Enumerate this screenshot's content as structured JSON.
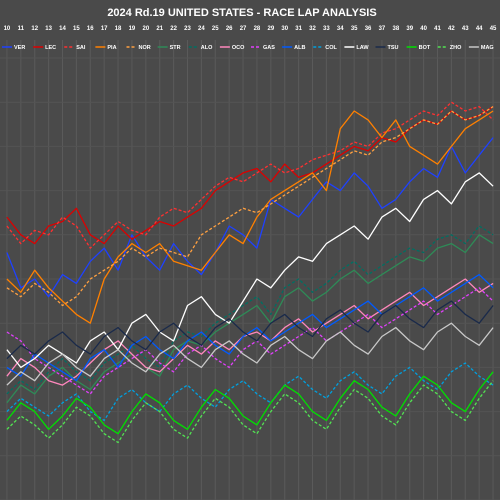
{
  "chart_data": {
    "type": "line",
    "title": "2024 Rd.19 UNITED STATES - RACE LAP ANALYSIS",
    "xlabel": "",
    "ylabel": "",
    "x_ticks": [
      "10",
      "11",
      "12",
      "13",
      "14",
      "15",
      "16",
      "17",
      "18",
      "19",
      "20",
      "21",
      "22",
      "23",
      "24",
      "25",
      "26",
      "27",
      "28",
      "29",
      "30",
      "31",
      "32",
      "33",
      "34",
      "35",
      "36",
      "37",
      "38",
      "39",
      "40",
      "41",
      "42",
      "43",
      "44",
      "45"
    ],
    "x_range": [
      9.5,
      45.5
    ],
    "y_range": [
      0,
      100
    ],
    "grid": true,
    "legend_placement": "top",
    "series": [
      {
        "name": "VER",
        "color": "#1e41ff",
        "dash": "solid",
        "x": [
          10,
          11,
          12,
          13,
          14,
          15,
          16,
          17,
          18,
          19,
          20,
          21,
          22,
          23,
          24,
          25,
          26,
          27,
          28,
          29,
          30,
          31,
          32,
          33,
          34,
          35,
          36,
          37,
          38,
          39,
          40,
          41,
          42,
          43,
          44,
          45
        ],
        "y": [
          56,
          48,
          50,
          46,
          51,
          49,
          54,
          57,
          52,
          60,
          55,
          52,
          58,
          54,
          51,
          56,
          62,
          60,
          57,
          68,
          66,
          64,
          68,
          72,
          70,
          74,
          71,
          66,
          68,
          72,
          75,
          73,
          80,
          74,
          78,
          82
        ]
      },
      {
        "name": "LEC",
        "color": "#dc0000",
        "dash": "solid",
        "x": [
          10,
          11,
          12,
          13,
          14,
          15,
          16,
          17,
          18,
          19,
          20,
          21,
          22,
          23,
          24,
          25,
          26,
          27,
          28,
          29,
          30,
          31,
          32,
          33,
          34,
          35,
          36,
          37,
          38,
          39,
          40,
          41,
          42,
          43,
          44,
          45
        ],
        "y": [
          64,
          60,
          58,
          62,
          63,
          66,
          60,
          58,
          62,
          59,
          61,
          63,
          62,
          64,
          66,
          70,
          72,
          74,
          75,
          72,
          76,
          73,
          74,
          76,
          78,
          80,
          79,
          82,
          81,
          84,
          86,
          85,
          88,
          86,
          87,
          89
        ]
      },
      {
        "name": "SAI",
        "color": "#ff3030",
        "dash": "dashed",
        "x": [
          10,
          11,
          12,
          13,
          14,
          15,
          16,
          17,
          18,
          19,
          20,
          21,
          22,
          23,
          24,
          25,
          26,
          27,
          28,
          29,
          30,
          31,
          32,
          33,
          34,
          35,
          36,
          37,
          38,
          39,
          40,
          41,
          42,
          43,
          44,
          45
        ],
        "y": [
          62,
          58,
          61,
          60,
          64,
          62,
          57,
          60,
          63,
          61,
          60,
          64,
          66,
          65,
          68,
          71,
          73,
          72,
          74,
          76,
          74,
          75,
          77,
          78,
          79,
          81,
          80,
          83,
          84,
          86,
          88,
          87,
          90,
          88,
          89,
          86
        ]
      },
      {
        "name": "PIA",
        "color": "#ff8000",
        "dash": "solid",
        "x": [
          10,
          11,
          12,
          13,
          14,
          15,
          16,
          17,
          18,
          19,
          20,
          21,
          22,
          23,
          24,
          25,
          26,
          27,
          28,
          29,
          30,
          31,
          32,
          33,
          34,
          35,
          36,
          37,
          38,
          39,
          40,
          41,
          42,
          43,
          44,
          45
        ],
        "y": [
          50,
          47,
          52,
          48,
          45,
          42,
          40,
          50,
          55,
          58,
          56,
          58,
          54,
          53,
          52,
          56,
          60,
          58,
          64,
          68,
          70,
          72,
          74,
          70,
          84,
          88,
          86,
          82,
          86,
          80,
          78,
          76,
          80,
          84,
          86,
          88
        ]
      },
      {
        "name": "NOR",
        "color": "#ffa040",
        "dash": "dashed",
        "x": [
          10,
          11,
          12,
          13,
          14,
          15,
          16,
          17,
          18,
          19,
          20,
          21,
          22,
          23,
          24,
          25,
          26,
          27,
          28,
          29,
          30,
          31,
          32,
          33,
          34,
          35,
          36,
          37,
          38,
          39,
          40,
          41,
          42,
          43,
          44,
          45
        ],
        "y": [
          48,
          46,
          49,
          47,
          44,
          46,
          50,
          52,
          54,
          57,
          55,
          57,
          56,
          55,
          60,
          62,
          64,
          66,
          65,
          67,
          69,
          71,
          73,
          75,
          77,
          79,
          78,
          81,
          82,
          84,
          86,
          85,
          88,
          86,
          87,
          89
        ]
      },
      {
        "name": "STR",
        "color": "#2e8b57",
        "dash": "solid",
        "x": [
          10,
          11,
          12,
          13,
          14,
          15,
          16,
          17,
          18,
          19,
          20,
          21,
          22,
          23,
          24,
          25,
          26,
          27,
          28,
          29,
          30,
          31,
          32,
          33,
          34,
          35,
          36,
          37,
          38,
          39,
          40,
          41,
          42,
          43,
          44,
          45
        ],
        "y": [
          22,
          26,
          24,
          28,
          30,
          27,
          25,
          29,
          31,
          33,
          30,
          28,
          34,
          36,
          35,
          38,
          40,
          42,
          44,
          40,
          46,
          48,
          45,
          47,
          50,
          52,
          49,
          51,
          53,
          55,
          54,
          57,
          58,
          56,
          60,
          58
        ]
      },
      {
        "name": "ALO",
        "color": "#006f62",
        "dash": "dashed",
        "x": [
          10,
          11,
          12,
          13,
          14,
          15,
          16,
          17,
          18,
          19,
          20,
          21,
          22,
          23,
          24,
          25,
          26,
          27,
          28,
          29,
          30,
          31,
          32,
          33,
          34,
          35,
          36,
          37,
          38,
          39,
          40,
          41,
          42,
          43,
          44,
          45
        ],
        "y": [
          24,
          27,
          25,
          29,
          32,
          29,
          27,
          31,
          33,
          35,
          32,
          30,
          36,
          38,
          37,
          40,
          42,
          44,
          46,
          42,
          48,
          50,
          47,
          49,
          52,
          54,
          51,
          53,
          55,
          57,
          56,
          59,
          60,
          58,
          62,
          60
        ]
      },
      {
        "name": "OCO",
        "color": "#ff87bc",
        "dash": "solid",
        "x": [
          10,
          11,
          12,
          13,
          14,
          15,
          16,
          17,
          18,
          19,
          20,
          21,
          22,
          23,
          24,
          25,
          26,
          27,
          28,
          29,
          30,
          31,
          32,
          33,
          34,
          35,
          36,
          37,
          38,
          39,
          40,
          41,
          42,
          43,
          44,
          45
        ],
        "y": [
          28,
          32,
          30,
          27,
          26,
          28,
          31,
          34,
          36,
          33,
          30,
          29,
          32,
          35,
          33,
          36,
          34,
          37,
          38,
          36,
          39,
          41,
          38,
          40,
          42,
          44,
          41,
          43,
          45,
          47,
          44,
          46,
          48,
          50,
          47,
          49
        ]
      },
      {
        "name": "GAS",
        "color": "#e040fb",
        "dash": "dashed",
        "x": [
          10,
          11,
          12,
          13,
          14,
          15,
          16,
          17,
          18,
          19,
          20,
          21,
          22,
          23,
          24,
          25,
          26,
          27,
          28,
          29,
          30,
          31,
          32,
          33,
          34,
          35,
          36,
          37,
          38,
          39,
          40,
          41,
          42,
          43,
          44,
          45
        ],
        "y": [
          38,
          36,
          32,
          30,
          28,
          26,
          24,
          28,
          30,
          32,
          34,
          31,
          29,
          33,
          35,
          32,
          30,
          34,
          36,
          33,
          35,
          37,
          39,
          36,
          38,
          40,
          42,
          39,
          41,
          43,
          45,
          42,
          44,
          46,
          48,
          45
        ]
      },
      {
        "name": "ALB",
        "color": "#005aff",
        "dash": "solid",
        "x": [
          10,
          11,
          12,
          13,
          14,
          15,
          16,
          17,
          18,
          19,
          20,
          21,
          22,
          23,
          24,
          25,
          26,
          27,
          28,
          29,
          30,
          31,
          32,
          33,
          34,
          35,
          36,
          37,
          38,
          39,
          40,
          41,
          42,
          43,
          44,
          45
        ],
        "y": [
          30,
          28,
          33,
          31,
          29,
          27,
          32,
          34,
          30,
          35,
          37,
          34,
          32,
          36,
          38,
          35,
          33,
          37,
          39,
          36,
          38,
          40,
          42,
          39,
          41,
          43,
          45,
          42,
          44,
          46,
          48,
          45,
          47,
          49,
          51,
          48
        ]
      },
      {
        "name": "COL",
        "color": "#00a0de",
        "dash": "dashed",
        "x": [
          10,
          11,
          12,
          13,
          14,
          15,
          16,
          17,
          18,
          19,
          20,
          21,
          22,
          23,
          24,
          25,
          26,
          27,
          28,
          29,
          30,
          31,
          32,
          33,
          34,
          35,
          36,
          37,
          38,
          39,
          40,
          41,
          42,
          43,
          44,
          45
        ],
        "y": [
          20,
          23,
          21,
          19,
          22,
          24,
          20,
          18,
          23,
          25,
          22,
          20,
          24,
          26,
          23,
          21,
          25,
          27,
          24,
          22,
          26,
          28,
          25,
          23,
          27,
          29,
          26,
          24,
          28,
          30,
          27,
          25,
          29,
          31,
          28,
          26
        ]
      },
      {
        "name": "LAW",
        "color": "#ffffff",
        "dash": "solid",
        "x": [
          10,
          11,
          12,
          13,
          14,
          15,
          16,
          17,
          18,
          19,
          20,
          21,
          22,
          23,
          24,
          25,
          26,
          27,
          28,
          29,
          30,
          31,
          32,
          33,
          34,
          35,
          36,
          37,
          38,
          39,
          40,
          41,
          42,
          43,
          44,
          45
        ],
        "y": [
          34,
          30,
          32,
          35,
          33,
          31,
          36,
          38,
          34,
          40,
          42,
          38,
          36,
          44,
          46,
          42,
          40,
          45,
          50,
          48,
          52,
          55,
          54,
          58,
          60,
          62,
          59,
          64,
          66,
          63,
          68,
          70,
          67,
          72,
          74,
          71
        ]
      },
      {
        "name": "TSU",
        "color": "#1a2a4a",
        "dash": "solid",
        "x": [
          10,
          11,
          12,
          13,
          14,
          15,
          16,
          17,
          18,
          19,
          20,
          21,
          22,
          23,
          24,
          25,
          26,
          27,
          28,
          29,
          30,
          31,
          32,
          33,
          34,
          35,
          36,
          37,
          38,
          39,
          40,
          41,
          42,
          43,
          44,
          45
        ],
        "y": [
          32,
          35,
          33,
          36,
          38,
          35,
          33,
          37,
          39,
          36,
          34,
          38,
          40,
          37,
          35,
          39,
          41,
          38,
          36,
          40,
          42,
          39,
          37,
          41,
          43,
          40,
          38,
          42,
          44,
          41,
          39,
          43,
          45,
          42,
          40,
          44
        ]
      },
      {
        "name": "BOT",
        "color": "#00e000",
        "dash": "solid",
        "x": [
          10,
          11,
          12,
          13,
          14,
          15,
          16,
          17,
          18,
          19,
          20,
          21,
          22,
          23,
          24,
          25,
          26,
          27,
          28,
          29,
          30,
          31,
          32,
          33,
          34,
          35,
          36,
          37,
          38,
          39,
          40,
          41,
          42,
          43,
          44,
          45
        ],
        "y": [
          18,
          22,
          20,
          16,
          19,
          23,
          21,
          17,
          15,
          20,
          24,
          22,
          18,
          16,
          21,
          25,
          23,
          19,
          17,
          22,
          26,
          24,
          20,
          18,
          23,
          27,
          25,
          21,
          19,
          24,
          28,
          26,
          22,
          20,
          25,
          29
        ]
      },
      {
        "name": "ZHO",
        "color": "#52e252",
        "dash": "dashed",
        "x": [
          10,
          11,
          12,
          13,
          14,
          15,
          16,
          17,
          18,
          19,
          20,
          21,
          22,
          23,
          24,
          25,
          26,
          27,
          28,
          29,
          30,
          31,
          32,
          33,
          34,
          35,
          36,
          37,
          38,
          39,
          40,
          41,
          42,
          43,
          44,
          45
        ],
        "y": [
          16,
          19,
          17,
          14,
          17,
          21,
          19,
          15,
          13,
          18,
          22,
          20,
          16,
          14,
          19,
          23,
          21,
          17,
          15,
          20,
          24,
          22,
          18,
          16,
          21,
          25,
          23,
          19,
          17,
          22,
          26,
          24,
          20,
          18,
          23,
          27
        ]
      },
      {
        "name": "MAG",
        "color": "#c8c8c8",
        "dash": "solid",
        "x": [
          10,
          11,
          12,
          13,
          14,
          15,
          16,
          17,
          18,
          19,
          20,
          21,
          22,
          23,
          24,
          25,
          26,
          27,
          28,
          29,
          30,
          31,
          32,
          33,
          34,
          35,
          36,
          37,
          38,
          39,
          40,
          41,
          42,
          43,
          44,
          45
        ],
        "y": [
          26,
          29,
          27,
          31,
          33,
          30,
          28,
          32,
          34,
          31,
          29,
          33,
          35,
          32,
          30,
          34,
          36,
          33,
          31,
          35,
          37,
          34,
          32,
          36,
          38,
          35,
          33,
          37,
          39,
          36,
          34,
          38,
          40,
          37,
          35,
          39
        ]
      }
    ]
  }
}
